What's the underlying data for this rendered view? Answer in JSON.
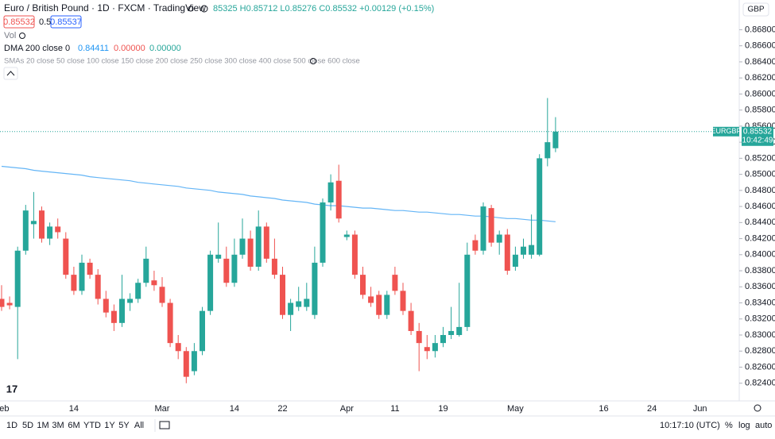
{
  "header": {
    "title": "Euro / British Pound · 1D · FXCM · TradingView",
    "ohlc": "85325 H0.85712 L0.85276 C0.85532 +0.00129 (+0.15%)",
    "bid": 0.85532,
    "spread": 0.5,
    "ask": 0.85537,
    "currency": "GBP"
  },
  "indicators": {
    "vol": "Vol",
    "dma_values": [
      0.84411,
      "0.00000",
      "0.00000"
    ],
    "smas": "SMAs 20 close 50 close 100 close 150 close 200 close 250 close 300 close 400 close 500 close 600 close"
  },
  "chart_data": {
    "type": "candlestick",
    "categories": [
      "Feb",
      null,
      null,
      null,
      null,
      null,
      null,
      null,
      null,
      "14",
      null,
      null,
      null,
      null,
      null,
      null,
      null,
      null,
      null,
      null,
      "Mar",
      null,
      null,
      null,
      null,
      null,
      null,
      null,
      null,
      "14",
      null,
      null,
      null,
      null,
      null,
      "22",
      null,
      null,
      null,
      null,
      null,
      null,
      null,
      "Apr",
      null,
      null,
      null,
      null,
      null,
      "11",
      null,
      null,
      null,
      null,
      null,
      "19",
      null,
      null,
      null,
      null,
      null,
      null,
      null,
      null,
      "May",
      null,
      null,
      null,
      null,
      null,
      null,
      null,
      null,
      null,
      null,
      "16",
      null,
      null,
      null,
      null,
      null,
      "24",
      null,
      null,
      null,
      null,
      null,
      "Jun"
    ],
    "open": [
      0.8345,
      0.834,
      0.8335,
      0.8405,
      0.8438,
      0.8455,
      0.842,
      0.8435,
      0.842,
      0.8375,
      0.8355,
      0.839,
      0.8375,
      0.8345,
      0.833,
      0.8315,
      0.834,
      0.8345,
      0.8365,
      0.8368,
      0.836,
      0.834,
      0.829,
      0.828,
      0.8255,
      0.828,
      0.833,
      0.8395,
      0.8395,
      0.8365,
      0.84,
      0.842,
      0.8385,
      0.8435,
      0.8395,
      0.8375,
      0.8325,
      0.8335,
      0.8335,
      0.8325,
      0.839,
      0.8465,
      0.8492,
      0.8422,
      0.8425,
      0.8375,
      0.8348,
      0.835,
      0.8325,
      0.8375,
      0.8355,
      0.833,
      0.8305,
      0.8285,
      0.828,
      0.829,
      0.83,
      0.83,
      0.831,
      0.8418,
      0.8405,
      0.8458,
      0.8415,
      0.8425,
      0.8385,
      0.84,
      0.84,
      0.84,
      0.852,
      0.85325,
      null,
      null,
      null,
      null,
      null,
      null,
      null,
      null,
      null,
      null,
      null,
      null,
      null,
      null,
      null,
      null,
      null,
      null
    ],
    "high": [
      0.8362,
      0.8348,
      0.841,
      0.8462,
      0.8478,
      0.846,
      0.844,
      0.8445,
      0.8428,
      0.8385,
      0.84,
      0.8395,
      0.8382,
      0.8355,
      0.8338,
      0.8375,
      0.8352,
      0.837,
      0.841,
      0.838,
      0.8372,
      0.8345,
      0.83,
      0.8285,
      0.829,
      0.8335,
      0.8405,
      0.844,
      0.841,
      0.842,
      0.8445,
      0.843,
      0.8455,
      0.844,
      0.842,
      0.8385,
      0.8345,
      0.836,
      0.8365,
      0.841,
      0.847,
      0.85,
      0.8512,
      0.843,
      0.843,
      0.8385,
      0.836,
      0.8355,
      0.8355,
      0.8385,
      0.8365,
      0.834,
      0.8315,
      0.83,
      0.83,
      0.831,
      0.8335,
      0.8365,
      0.8415,
      0.8425,
      0.8465,
      0.8462,
      0.843,
      0.8432,
      0.841,
      0.842,
      0.845,
      0.8525,
      0.8595,
      0.85712,
      null,
      null,
      null,
      null,
      null,
      null,
      null,
      null,
      null,
      null,
      null,
      null,
      null,
      null,
      null,
      null,
      null,
      null
    ],
    "low": [
      0.833,
      0.8332,
      0.827,
      0.84,
      0.842,
      0.8415,
      0.8412,
      0.842,
      0.837,
      0.835,
      0.835,
      0.837,
      0.8338,
      0.8322,
      0.8305,
      0.831,
      0.833,
      0.834,
      0.836,
      0.8355,
      0.8335,
      0.8285,
      0.827,
      0.824,
      0.825,
      0.8275,
      0.8325,
      0.839,
      0.836,
      0.836,
      0.8395,
      0.838,
      0.838,
      0.839,
      0.837,
      0.832,
      0.8305,
      0.833,
      0.833,
      0.832,
      0.8385,
      0.8455,
      0.844,
      0.8418,
      0.837,
      0.8345,
      0.8335,
      0.832,
      0.832,
      0.835,
      0.8325,
      0.83,
      0.8255,
      0.827,
      0.8272,
      0.8285,
      0.8295,
      0.8298,
      0.8305,
      0.84,
      0.84,
      0.841,
      0.84,
      0.8375,
      0.838,
      0.8395,
      0.8395,
      0.8398,
      0.851,
      0.85276,
      null,
      null,
      null,
      null,
      null,
      null,
      null,
      null,
      null,
      null,
      null,
      null,
      null,
      null,
      null,
      null,
      null,
      null
    ],
    "close": [
      0.8335,
      0.8337,
      0.8405,
      0.8455,
      0.8442,
      0.842,
      0.8435,
      0.8428,
      0.8375,
      0.8355,
      0.839,
      0.8375,
      0.8345,
      0.8328,
      0.8315,
      0.8345,
      0.8345,
      0.8365,
      0.8395,
      0.8362,
      0.834,
      0.829,
      0.828,
      0.8248,
      0.828,
      0.833,
      0.84,
      0.84,
      0.8365,
      0.84,
      0.842,
      0.8385,
      0.8435,
      0.8395,
      0.8375,
      0.8325,
      0.834,
      0.8342,
      0.8345,
      0.839,
      0.8465,
      0.849,
      0.8445,
      0.8425,
      0.8375,
      0.835,
      0.834,
      0.8325,
      0.835,
      0.8355,
      0.833,
      0.8305,
      0.829,
      0.828,
      0.829,
      0.83,
      0.8305,
      0.831,
      0.84,
      0.8405,
      0.846,
      0.8415,
      0.8425,
      0.838,
      0.84,
      0.841,
      0.8412,
      0.852,
      0.854,
      0.85532,
      null,
      null,
      null,
      null,
      null,
      null,
      null,
      null,
      null,
      null,
      null,
      null,
      null,
      null,
      null,
      null,
      null,
      null
    ],
    "up_color": "#26a69a",
    "down_color": "#ef5350",
    "overlays": [
      {
        "name": "DMA 200 close 0",
        "color": "#64b5f6",
        "values": [
          0.851,
          0.8509,
          0.8508,
          0.8507,
          0.8505,
          0.8504,
          0.8503,
          0.8502,
          0.8501,
          0.85,
          0.8499,
          0.8497,
          0.8496,
          0.8495,
          0.8494,
          0.8493,
          0.8492,
          0.849,
          0.8489,
          0.8488,
          0.8487,
          0.8486,
          0.8485,
          0.8483,
          0.8482,
          0.8481,
          0.848,
          0.8478,
          0.8477,
          0.8476,
          0.8475,
          0.8473,
          0.8472,
          0.8471,
          0.847,
          0.8468,
          0.8467,
          0.8466,
          0.8465,
          0.8463,
          0.8462,
          0.8461,
          0.8461,
          0.846,
          0.8459,
          0.8458,
          0.8458,
          0.8457,
          0.8456,
          0.8455,
          0.8455,
          0.8454,
          0.8453,
          0.8453,
          0.8452,
          0.8451,
          0.845,
          0.845,
          0.8449,
          0.8448,
          0.8448,
          0.8447,
          0.8446,
          0.8445,
          0.8445,
          0.8444,
          0.8443,
          0.8443,
          0.8442,
          0.8441,
          null,
          null,
          null,
          null,
          null,
          null,
          null,
          null,
          null,
          null,
          null,
          null,
          null,
          null,
          null,
          null,
          null,
          null
        ]
      }
    ],
    "last_price": {
      "symbol": "EURGBP",
      "value": 0.85532,
      "countdown": "10:42:49"
    },
    "ylim": [
      0.8218,
      0.8717
    ],
    "yticks": [
      {
        "value": 0.824,
        "label": "0.82400"
      },
      {
        "value": 0.826,
        "label": "0.82600"
      },
      {
        "value": 0.828,
        "label": "0.82800"
      },
      {
        "value": 0.83,
        "label": "0.83000"
      },
      {
        "value": 0.832,
        "label": "0.83200"
      },
      {
        "value": 0.834,
        "label": "0.83400"
      },
      {
        "value": 0.836,
        "label": "0.83600"
      },
      {
        "value": 0.838,
        "label": "0.83800"
      },
      {
        "value": 0.84,
        "label": "0.84000"
      },
      {
        "value": 0.842,
        "label": "0.84200"
      },
      {
        "value": 0.844,
        "label": "0.84400"
      },
      {
        "value": 0.846,
        "label": "0.84600"
      },
      {
        "value": 0.848,
        "label": "0.84800"
      },
      {
        "value": 0.85,
        "label": "0.85000"
      },
      {
        "value": 0.852,
        "label": "0.85200"
      },
      {
        "value": 0.854,
        "label": "0.85400"
      },
      {
        "value": 0.856,
        "label": "0.85600"
      },
      {
        "value": 0.858,
        "label": "0.85800"
      },
      {
        "value": 0.86,
        "label": "0.86000"
      },
      {
        "value": 0.862,
        "label": "0.86200"
      },
      {
        "value": 0.864,
        "label": "0.86400"
      },
      {
        "value": 0.866,
        "label": "0.86600"
      },
      {
        "value": 0.868,
        "label": "0.86800"
      }
    ],
    "grid": false
  },
  "footer": {
    "ranges": [
      "1D",
      "5D",
      "1M",
      "3M",
      "6M",
      "YTD",
      "1Y",
      "5Y",
      "All"
    ],
    "clock": "10:17:10 (UTC)",
    "percent": "%",
    "log": "log",
    "auto": "auto"
  }
}
